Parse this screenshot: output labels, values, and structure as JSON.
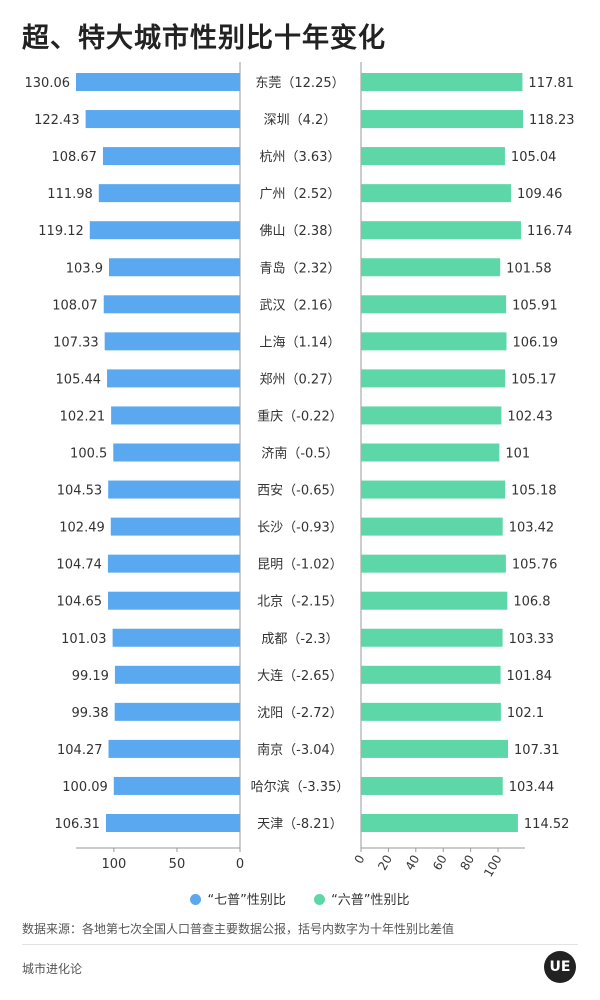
{
  "chart_data": {
    "type": "bar",
    "title": "超、特大城市性别比十年变化",
    "categories": [
      "东莞（12.25）",
      "深圳（4.2）",
      "杭州（3.63）",
      "广州（2.52）",
      "佛山（2.38）",
      "青岛（2.32）",
      "武汉（2.16）",
      "上海（1.14）",
      "郑州（0.27）",
      "重庆（-0.22）",
      "济南（-0.5）",
      "西安（-0.65）",
      "长沙（-0.93）",
      "昆明（-1.02）",
      "北京（-2.15）",
      "成都（-2.3）",
      "大连（-2.65）",
      "沈阳（-2.72）",
      "南京（-3.04）",
      "哈尔滨（-3.35）",
      "天津（-8.21）"
    ],
    "series": [
      {
        "name": "“七普”性别比",
        "color": "#5aa8ef",
        "value_labels": [
          "130.06",
          "122.43",
          "108.67",
          "111.98",
          "119.12",
          "103.9",
          "108.07",
          "107.33",
          "105.44",
          "102.21",
          "100.5",
          "104.53",
          "102.49",
          "104.74",
          "104.65",
          "101.03",
          "99.19",
          "99.38",
          "104.27",
          "100.09",
          "106.31"
        ],
        "values": [
          130.06,
          122.43,
          108.67,
          111.98,
          119.12,
          103.9,
          108.07,
          107.33,
          105.44,
          102.21,
          100.5,
          104.53,
          102.49,
          104.74,
          104.65,
          101.03,
          99.19,
          99.38,
          104.27,
          100.09,
          106.31
        ]
      },
      {
        "name": "“六普”性别比",
        "color": "#5dd6a8",
        "value_labels": [
          "117.81",
          "118.23",
          "105.04",
          "109.46",
          "116.74",
          "101.58",
          "105.91",
          "106.19",
          "105.17",
          "102.43",
          "101",
          "105.18",
          "103.42",
          "105.76",
          "106.8",
          "103.33",
          "101.84",
          "102.1",
          "107.31",
          "103.44",
          "114.52"
        ],
        "values": [
          117.81,
          118.23,
          105.04,
          109.46,
          116.74,
          101.58,
          105.91,
          106.19,
          105.17,
          102.43,
          101,
          105.18,
          103.42,
          105.76,
          106.8,
          103.33,
          101.84,
          102.1,
          107.31,
          103.44,
          114.52
        ]
      }
    ],
    "left_axis": {
      "ticks": [
        "100",
        "50",
        "0"
      ],
      "tick_values": [
        100,
        50,
        0
      ],
      "range": [
        0,
        130.06
      ]
    },
    "right_axis": {
      "ticks": [
        "0",
        "20",
        "40",
        "60",
        "80",
        "100"
      ],
      "tick_values": [
        0,
        20,
        40,
        60,
        80,
        100
      ],
      "range": [
        0,
        118.23
      ]
    },
    "legend_position": "bottom-center"
  },
  "legend": {
    "seven": "“七普”性别比",
    "six": "“六普”性别比"
  },
  "colors": {
    "seven": "#5aa8ef",
    "six": "#5dd6a8",
    "axis": "#999999",
    "text": "#333333"
  },
  "source": "数据来源：各地第七次全国人口普查主要数据公报，括号内数字为十年性别比差值",
  "footer": {
    "brand": "城市进化论",
    "logo": "UE"
  }
}
